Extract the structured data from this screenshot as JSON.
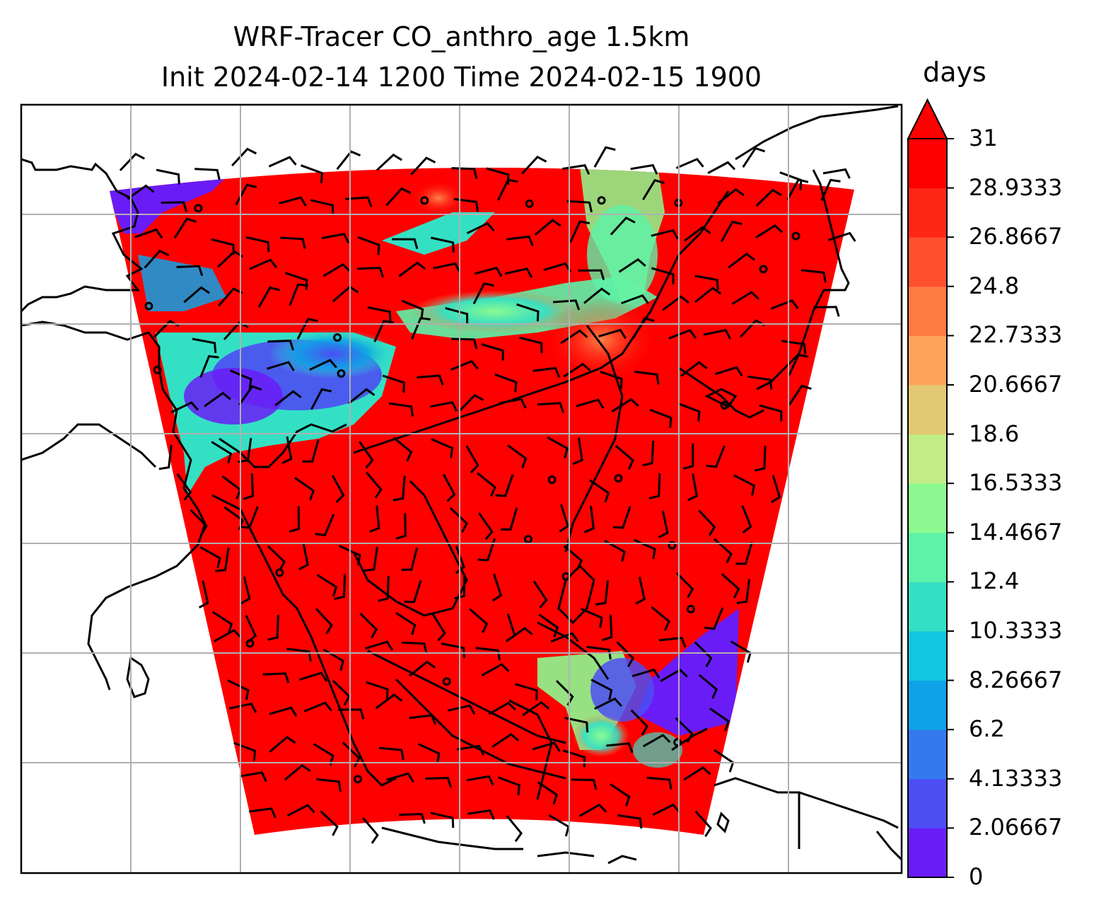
{
  "title": {
    "line1": "WRF-Tracer CO_anthro_age 1.5km",
    "line2": "Init 2024-02-14 1200 Time 2024-02-15 1900"
  },
  "colorbar": {
    "label": "days",
    "ticks": [
      "31",
      "28.9333",
      "26.8667",
      "24.8",
      "22.7333",
      "20.6667",
      "18.6",
      "16.5333",
      "14.4667",
      "12.4",
      "10.3333",
      "8.26667",
      "6.2",
      "4.13333",
      "2.06667",
      "0"
    ],
    "colors": [
      "#6a1cf6",
      "#4c4ef3",
      "#3679ef",
      "#0ea2e6",
      "#12c6e0",
      "#34e0c4",
      "#5cf2a8",
      "#8cfa90",
      "#c2ed86",
      "#e2c872",
      "#fea45a",
      "#fe7a43",
      "#fe502c",
      "#fe2716"
    ],
    "extend_color": "#fe0000",
    "range": [
      0,
      31
    ],
    "extend": "max"
  },
  "map": {
    "dominant_color": "#fe0000",
    "grid": true
  }
}
